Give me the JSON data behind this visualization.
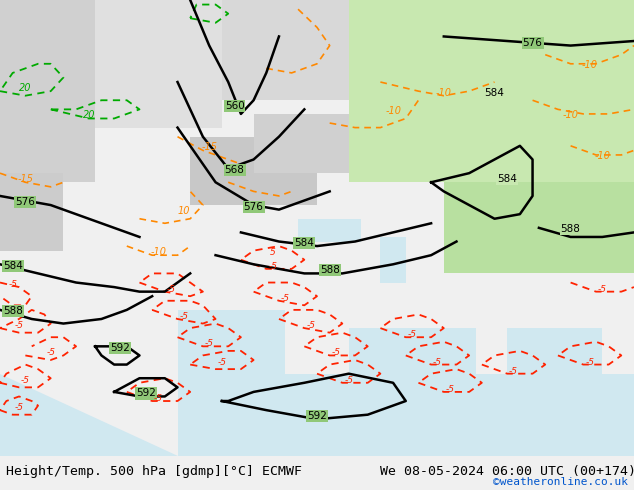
{
  "title_left": "Height/Temp. 500 hPa [gdmp][°C] ECMWF",
  "title_right": "We 08-05-2024 06:00 UTC (00+174)",
  "credit": "©weatheronline.co.uk",
  "bg_color": "#c8c8c8",
  "map_bg_color": "#90c878",
  "water_color": "#d0e8f0",
  "land_light_color": "#b8e0a0",
  "land_medium_color": "#a0d080",
  "bottom_bar_color": "#f0f0f0",
  "geopotential_color": "#000000",
  "temp_negative_color": "#ff2200",
  "temp_orange_color": "#ff8800",
  "temp_green_color": "#00aa00",
  "temp_cyan_color": "#00cccc",
  "label_fontsize": 7.5,
  "title_fontsize": 9.5,
  "credit_fontsize": 8,
  "figsize": [
    6.34,
    4.9
  ],
  "dpi": 100
}
